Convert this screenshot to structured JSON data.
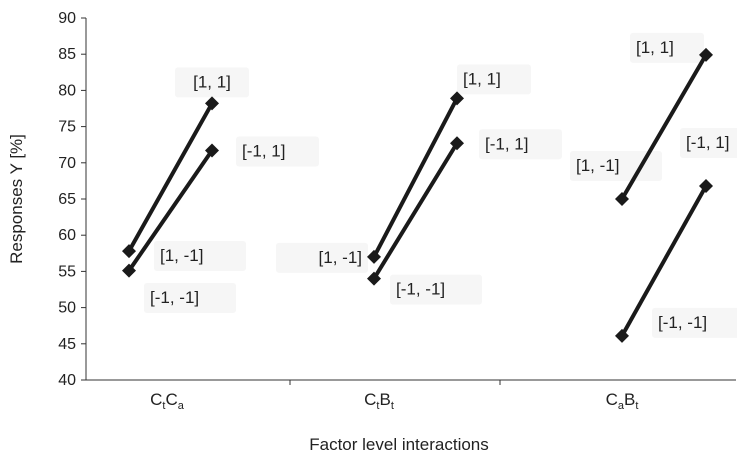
{
  "chart_data": {
    "type": "line",
    "xlabel": "Factor level interactions",
    "ylabel": "Responses Y [%]",
    "ylim": [
      40,
      90
    ],
    "ytick_step": 5,
    "grid": false,
    "categories": [
      {
        "main": "C",
        "sub1": "t",
        "main2": "C",
        "sub2": "a"
      },
      {
        "main": "C",
        "sub1": "t",
        "main2": "B",
        "sub2": "t"
      },
      {
        "main": "C",
        "sub1": "a",
        "main2": "B",
        "sub2": "t"
      }
    ],
    "groups": [
      {
        "lines": [
          {
            "x": [
              "low",
              "high"
            ],
            "y": [
              57.8,
              78.2
            ],
            "labels": [
              "",
              "[1, 1]"
            ]
          },
          {
            "x": [
              "low",
              "high"
            ],
            "y": [
              55.1,
              71.7
            ],
            "labels": [
              "",
              "[-1, 1]"
            ]
          }
        ],
        "low_labels": [
          "[1,  -1]",
          "[-1, -1]"
        ]
      },
      {
        "lines": [
          {
            "x": [
              "low",
              "high"
            ],
            "y": [
              57.0,
              78.9
            ],
            "labels": [
              "[1,  -1]",
              "[1, 1]"
            ]
          },
          {
            "x": [
              "low",
              "high"
            ],
            "y": [
              54.0,
              72.7
            ],
            "labels": [
              "[-1, -1]",
              "[-1, 1]"
            ]
          }
        ],
        "low_labels": []
      },
      {
        "lines": [
          {
            "x": [
              "low",
              "high"
            ],
            "y": [
              65.0,
              84.9
            ],
            "labels": [
              "[1,  -1]",
              "[1, 1]"
            ]
          },
          {
            "x": [
              "low",
              "high"
            ],
            "y": [
              46.1,
              66.8
            ],
            "labels": [
              "[-1, -1]",
              "[-1, 1]"
            ]
          }
        ],
        "low_labels": []
      }
    ],
    "line_color": "#1a1a1a",
    "marker": "diamond"
  }
}
